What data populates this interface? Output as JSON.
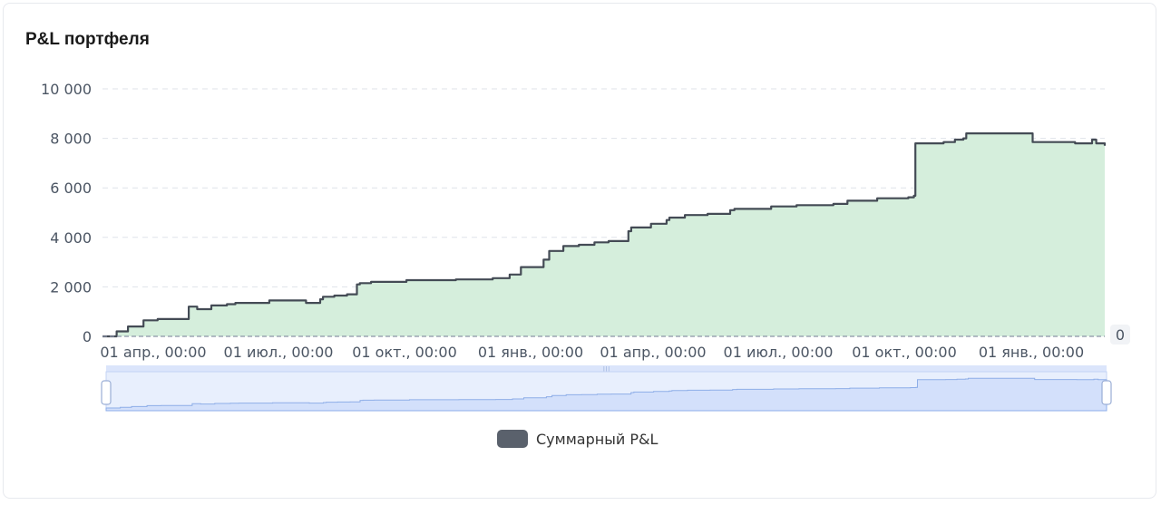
{
  "card": {
    "title": "P&L портфеля"
  },
  "chart_data": {
    "type": "area",
    "title": "P&L портфеля",
    "xlabel": "",
    "ylabel": "",
    "ylim": [
      0,
      10000
    ],
    "yticks": [
      0,
      2000,
      4000,
      6000,
      8000,
      10000
    ],
    "ytick_labels": [
      "0",
      "2 000",
      "4 000",
      "6 000",
      "8 000",
      "10 000"
    ],
    "xtick_labels": [
      "01 апр., 00:00",
      "01 июл., 00:00",
      "01 окт., 00:00",
      "01 янв., 00:00",
      "01 апр., 00:00",
      "01 июл., 00:00",
      "01 окт., 00:00",
      "01 янв., 00:00"
    ],
    "grid": true,
    "right_axis_label": "0",
    "legend": {
      "position": "bottom-center",
      "entries": [
        "Суммарный P&L"
      ]
    },
    "colors": {
      "line": "#444b55",
      "fill": "#d5eedc",
      "legend_swatch": "#5a616c",
      "zoom_fill": "#d3e0fb",
      "zoom_line": "#8eaee8"
    },
    "series": [
      {
        "name": "Суммарный P&L",
        "x": [
          "2023-03-10",
          "2023-03-20",
          "2023-03-28",
          "2023-04-08",
          "2023-04-18",
          "2023-05-10",
          "2023-05-16",
          "2023-05-26",
          "2023-06-06",
          "2023-06-12",
          "2023-07-06",
          "2023-08-01",
          "2023-08-11",
          "2023-08-13",
          "2023-08-21",
          "2023-08-30",
          "2023-09-06",
          "2023-09-08",
          "2023-09-16",
          "2023-10-11",
          "2023-11-15",
          "2023-12-11",
          "2023-12-23",
          "2023-12-31",
          "2024-01-16",
          "2024-01-20",
          "2024-01-30",
          "2024-02-10",
          "2024-02-21",
          "2024-03-02",
          "2024-03-16",
          "2024-03-18",
          "2024-04-01",
          "2024-04-12",
          "2024-04-14",
          "2024-04-25",
          "2024-05-11",
          "2024-05-27",
          "2024-05-30",
          "2024-06-25",
          "2024-07-13",
          "2024-08-08",
          "2024-08-18",
          "2024-09-08",
          "2024-09-30",
          "2024-10-04",
          "2024-10-05",
          "2024-10-25",
          "2024-11-02",
          "2024-11-08",
          "2024-11-10",
          "2024-11-25",
          "2024-12-27",
          "2025-01-26",
          "2025-02-07",
          "2025-02-10",
          "2025-02-16"
        ],
        "values": [
          0,
          200,
          400,
          650,
          700,
          1200,
          1100,
          1250,
          1300,
          1350,
          1450,
          1350,
          1500,
          1600,
          1650,
          1700,
          2100,
          2150,
          2200,
          2270,
          2300,
          2350,
          2500,
          2800,
          3100,
          3450,
          3650,
          3700,
          3800,
          3850,
          4250,
          4400,
          4550,
          4700,
          4800,
          4900,
          4950,
          5100,
          5150,
          5250,
          5300,
          5350,
          5480,
          5580,
          5620,
          5680,
          7800,
          7850,
          7950,
          8000,
          8200,
          8200,
          7850,
          7800,
          7950,
          7800,
          7700
        ]
      }
    ]
  }
}
